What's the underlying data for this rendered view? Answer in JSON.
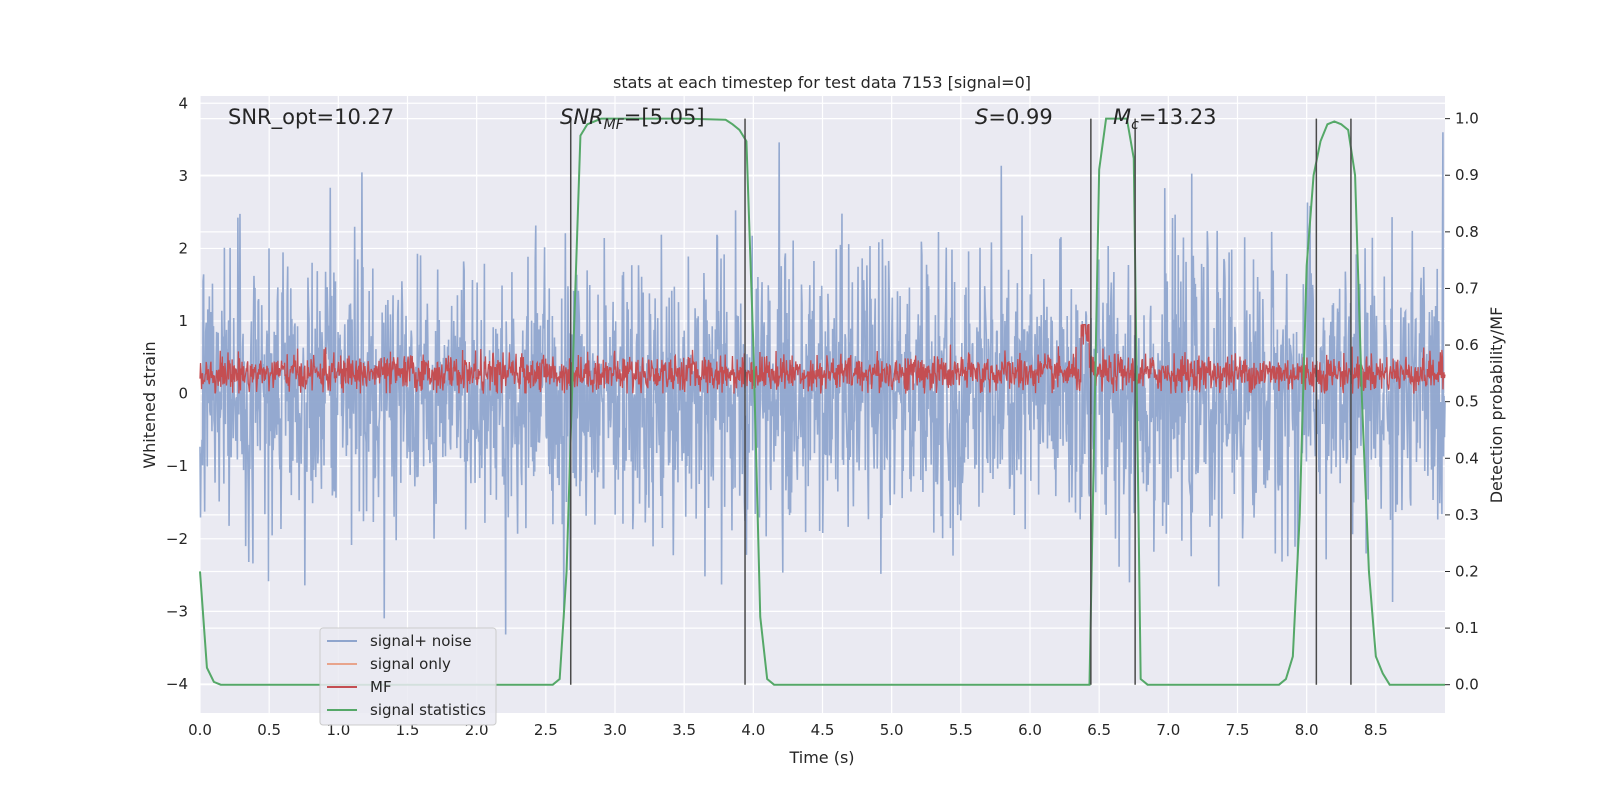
{
  "chart_data": {
    "type": "line",
    "title": "stats at each timestep for test data 7153 [signal=0]",
    "xlabel": "Time (s)",
    "ylabel": "Whitened strain",
    "ylabel_right": "Detection probability/MF",
    "xlim": [
      0,
      9.0
    ],
    "ylim": [
      -4.4,
      4.1
    ],
    "ylim_right": [
      -0.05,
      1.04
    ],
    "x_ticks": [
      0.0,
      0.5,
      1.0,
      1.5,
      2.0,
      2.5,
      3.0,
      3.5,
      4.0,
      4.5,
      5.0,
      5.5,
      6.0,
      6.5,
      7.0,
      7.5,
      8.0,
      8.5
    ],
    "x_tick_labels": [
      "0.0",
      "0.5",
      "1.0",
      "1.5",
      "2.0",
      "2.5",
      "3.0",
      "3.5",
      "4.0",
      "4.5",
      "5.0",
      "5.5",
      "6.0",
      "6.5",
      "7.0",
      "7.5",
      "8.0",
      "8.5"
    ],
    "y_ticks": [
      4,
      3,
      2,
      1,
      0,
      -1,
      -2,
      -3,
      -4
    ],
    "y_tick_labels": [
      "4",
      "3",
      "2",
      "1",
      "0",
      "−1",
      "−2",
      "−3",
      "−4"
    ],
    "y_right_ticks": [
      1.0,
      0.9,
      0.8,
      0.7,
      0.6,
      0.5,
      0.4,
      0.3,
      0.2,
      0.1,
      0.0
    ],
    "y_right_tick_labels": [
      "1.0",
      "0.9",
      "0.8",
      "0.7",
      "0.6",
      "0.5",
      "0.4",
      "0.3",
      "0.2",
      "0.1",
      "0.0"
    ],
    "grid": true,
    "legend_position": "lower-left",
    "annotations": {
      "snr_opt": "SNR_opt=10.27",
      "snr_mf_main": "SNR",
      "snr_mf_sub": "MF",
      "snr_mf_value": "=[5.05]",
      "s_main": "S",
      "s_value": "=0.99",
      "mc_main": "M",
      "mc_sub": "c",
      "mc_value": "=13.23"
    },
    "series": [
      {
        "name": "signal+ noise",
        "color": "#8fa5cd",
        "axis": "left",
        "description": "whitened noise, approx. Gaussian, sigma ~0.9, peaks to about ±3.5, over t = 0 to 9.0 s"
      },
      {
        "name": "signal only",
        "color": "#e8a48c",
        "axis": "left",
        "x": [],
        "y": []
      },
      {
        "name": "MF",
        "color": "#c44e52",
        "axis": "left",
        "description": "matched filter output, mostly between 0.0 and 0.6, peaks near 0.95 at t ≈ 6.4 s"
      },
      {
        "name": "signal statistics",
        "color": "#55a868",
        "axis": "right",
        "x": [
          0.0,
          0.05,
          0.1,
          0.15,
          0.2,
          0.3,
          2.55,
          2.6,
          2.65,
          2.7,
          2.75,
          2.8,
          2.9,
          3.5,
          3.8,
          3.85,
          3.9,
          3.95,
          4.0,
          4.05,
          4.1,
          4.15,
          4.2,
          6.43,
          6.5,
          6.55,
          6.6,
          6.7,
          6.75,
          6.8,
          6.85,
          7.8,
          7.85,
          7.9,
          7.95,
          8.0,
          8.05,
          8.1,
          8.15,
          8.2,
          8.25,
          8.3,
          8.35,
          8.4,
          8.45,
          8.5,
          8.55,
          8.6,
          9.0
        ],
        "y": [
          0.2,
          0.03,
          0.005,
          0.0,
          0.0,
          0.0,
          0.0,
          0.01,
          0.2,
          0.6,
          0.97,
          0.99,
          1.0,
          1.0,
          0.998,
          0.99,
          0.98,
          0.96,
          0.6,
          0.12,
          0.01,
          0.0,
          0.0,
          0.0,
          0.91,
          1.0,
          1.0,
          1.0,
          0.93,
          0.01,
          0.0,
          0.0,
          0.01,
          0.05,
          0.3,
          0.74,
          0.9,
          0.96,
          0.99,
          0.995,
          0.99,
          0.98,
          0.9,
          0.5,
          0.2,
          0.05,
          0.02,
          0.0,
          0.0
        ]
      }
    ],
    "markers": [
      {
        "name": "vertical line",
        "x": 2.68,
        "color": "#4a4a4a"
      },
      {
        "name": "vertical line",
        "x": 3.94,
        "color": "#4a4a4a"
      },
      {
        "name": "vertical line",
        "x": 6.44,
        "color": "#4a4a4a"
      },
      {
        "name": "vertical line",
        "x": 6.76,
        "color": "#4a4a4a"
      },
      {
        "name": "vertical line",
        "x": 8.07,
        "color": "#4a4a4a"
      },
      {
        "name": "vertical line",
        "x": 8.32,
        "color": "#4a4a4a"
      }
    ],
    "marker_ylim_right": [
      0.0,
      1.0
    ],
    "colors": {
      "plot_background": "#eaeaf2",
      "grid": "#ffffff",
      "text": "#262626"
    }
  }
}
